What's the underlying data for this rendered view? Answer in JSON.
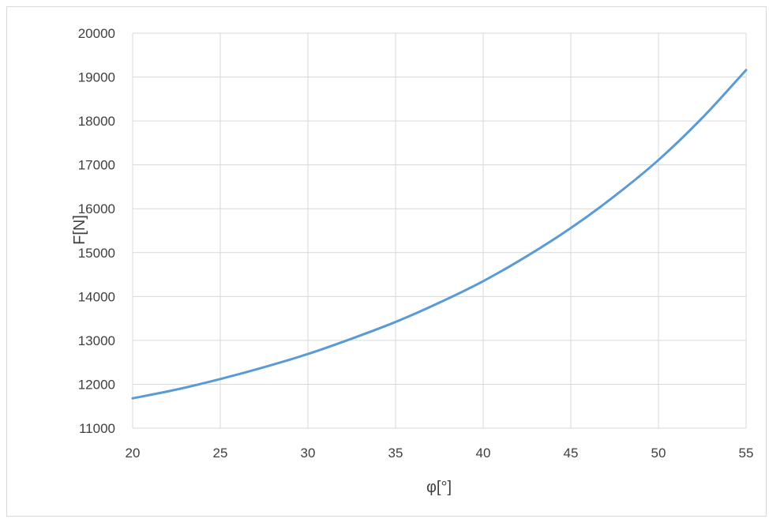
{
  "chart_data": {
    "type": "line",
    "title": "",
    "xlabel": "φ[°]",
    "ylabel": "F[N]",
    "xlim": [
      20,
      55
    ],
    "ylim": [
      11000,
      20000
    ],
    "x_ticks": [
      "20",
      "25",
      "30",
      "35",
      "40",
      "45",
      "50",
      "55"
    ],
    "y_ticks": [
      "11000",
      "12000",
      "13000",
      "14000",
      "15000",
      "16000",
      "17000",
      "18000",
      "19000",
      "20000"
    ],
    "grid": true,
    "legend": "none",
    "series": [
      {
        "color": "#5b9bd5",
        "x": [
          20,
          22.5,
          25,
          27.5,
          30,
          32.5,
          35,
          37.5,
          40,
          42.5,
          45,
          47.5,
          50,
          52.5,
          55
        ],
        "y": [
          11680,
          11880,
          12120,
          12390,
          12690,
          13040,
          13420,
          13860,
          14350,
          14920,
          15560,
          16290,
          17110,
          18070,
          19160
        ]
      }
    ]
  }
}
